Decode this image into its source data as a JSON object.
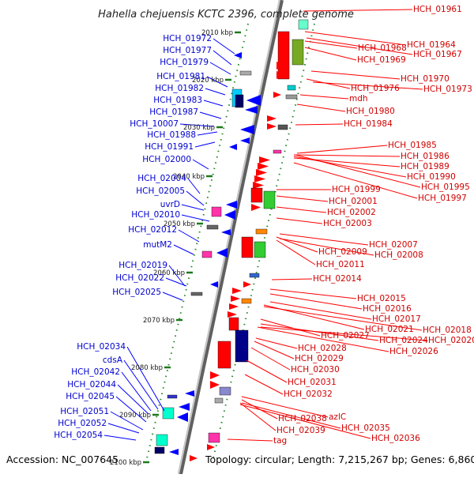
{
  "title": "Hahella chejuensis KCTC 2396, complete genome",
  "footer": {
    "accession": "Accession: NC_007645",
    "topology": "Topology: circular; Length: 7,215,267 bp; Genes: 6,860"
  },
  "kbp_marks": [
    "2010 kbp",
    "2020 kbp",
    "2030 kbp",
    "2040 kbp",
    "2050 kbp",
    "2060 kbp",
    "2070 kbp",
    "2080 kbp",
    "2090 kbp",
    "2100 kbp"
  ],
  "left_genes": [
    "HCH_01972",
    "HCH_01977",
    "HCH_01979",
    "HCH_01981",
    "HCH_01982",
    "HCH_01983",
    "HCH_01987",
    "HCH_10007",
    "HCH_01988",
    "HCH_01991",
    "HCH_02000",
    "HCH_02004",
    "HCH_02005",
    "uvrD",
    "HCH_02010",
    "HCH_02012",
    "mutM2",
    "HCH_02019",
    "HCH_02022",
    "HCH_02025",
    "HCH_02034",
    "cdsA",
    "HCH_02042",
    "HCH_02044",
    "HCH_02045",
    "HCH_02051",
    "HCH_02052",
    "HCH_02054"
  ],
  "right_genes": [
    "HCH_01961",
    "HCH_01964",
    "HCH_01968",
    "HCH_01967",
    "HCH_01969",
    "HCH_01970",
    "HCH_01976",
    "HCH_01973",
    "mdh",
    "HCH_01980",
    "HCH_01984",
    "HCH_01985",
    "HCH_01986",
    "HCH_01989",
    "HCH_01990",
    "HCH_01995",
    "HCH_01999",
    "HCH_01997",
    "HCH_02001",
    "HCH_02002",
    "HCH_02003",
    "HCH_02007",
    "HCH_02009",
    "HCH_02008",
    "HCH_02011",
    "HCH_02014",
    "HCH_02015",
    "HCH_02016",
    "HCH_02017",
    "HCH_02021",
    "HCH_02018",
    "HCH_02027",
    "HCH_02024",
    "HCH_02020",
    "HCH_02028",
    "HCH_02026",
    "HCH_02029",
    "HCH_02030",
    "HCH_02031",
    "HCH_02032",
    "HCH_02038",
    "azlC",
    "HCH_02035",
    "HCH_02039",
    "HCH_02036",
    "tag"
  ],
  "colors": {
    "strand_forward": "#ff0000",
    "strand_reverse": "#0000ff",
    "left_label": "#0000d0",
    "right_label": "#d00000"
  }
}
